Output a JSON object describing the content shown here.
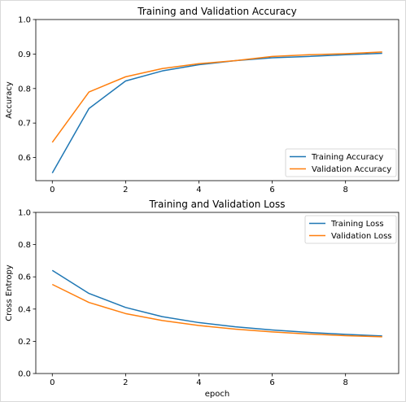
{
  "chart_data": [
    {
      "type": "line",
      "title": "Training and Validation Accuracy",
      "xlabel": "",
      "ylabel": "Accuracy",
      "xlim": [
        -0.45,
        9.45
      ],
      "ylim": [
        0.533,
        1.0
      ],
      "xticks": [
        0,
        2,
        4,
        6,
        8
      ],
      "yticks": [
        0.6,
        0.7,
        0.8,
        0.9,
        1.0
      ],
      "ytick_labels": [
        "0.6",
        "0.7",
        "0.8",
        "0.9",
        "1.0"
      ],
      "legend_position": "lower-right",
      "grid": false,
      "x": [
        0,
        1,
        2,
        3,
        4,
        5,
        6,
        7,
        8,
        9
      ],
      "series": [
        {
          "name": "Training Accuracy",
          "color": "#1f77b4",
          "values": [
            0.555,
            0.742,
            0.822,
            0.851,
            0.869,
            0.881,
            0.889,
            0.893,
            0.898,
            0.902
          ]
        },
        {
          "name": "Validation Accuracy",
          "color": "#ff7f0e",
          "values": [
            0.644,
            0.79,
            0.834,
            0.858,
            0.872,
            0.881,
            0.893,
            0.898,
            0.901,
            0.906
          ]
        }
      ]
    },
    {
      "type": "line",
      "title": "Training and Validation Loss",
      "xlabel": "epoch",
      "ylabel": "Cross Entropy",
      "xlim": [
        -0.45,
        9.45
      ],
      "ylim": [
        0.0,
        1.0
      ],
      "xticks": [
        0,
        2,
        4,
        6,
        8
      ],
      "yticks": [
        0.0,
        0.2,
        0.4,
        0.6,
        0.8,
        1.0
      ],
      "ytick_labels": [
        "0.0",
        "0.2",
        "0.4",
        "0.6",
        "0.8",
        "1.0"
      ],
      "legend_position": "upper-right",
      "grid": false,
      "x": [
        0,
        1,
        2,
        3,
        4,
        5,
        6,
        7,
        8,
        9
      ],
      "series": [
        {
          "name": "Training Loss",
          "color": "#1f77b4",
          "values": [
            0.64,
            0.497,
            0.41,
            0.353,
            0.316,
            0.29,
            0.27,
            0.255,
            0.243,
            0.233
          ]
        },
        {
          "name": "Validation Loss",
          "color": "#ff7f0e",
          "values": [
            0.553,
            0.441,
            0.372,
            0.329,
            0.298,
            0.275,
            0.258,
            0.245,
            0.235,
            0.228
          ]
        }
      ]
    }
  ]
}
